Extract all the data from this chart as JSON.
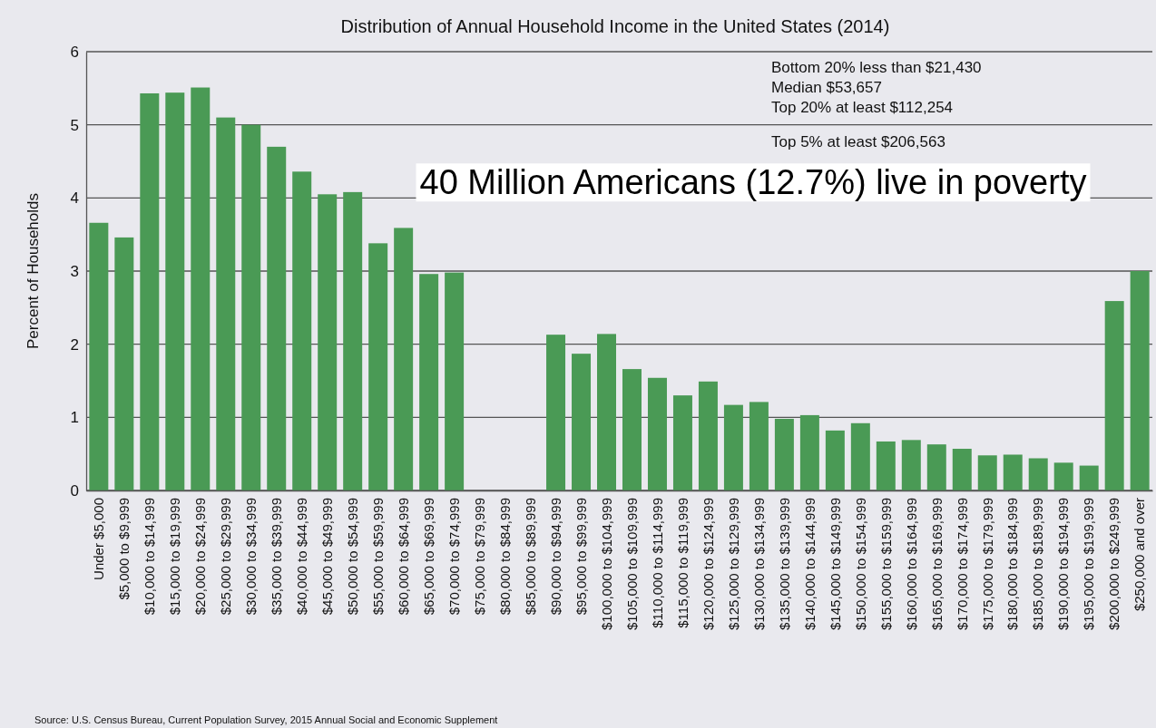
{
  "chart_data": {
    "type": "bar",
    "title": "Distribution of Annual Household Income in the United States (2014)",
    "ylabel": "Percent of Households",
    "categories": [
      "Under $5,000",
      "$5,000 to $9,999",
      "$10,000 to $14,999",
      "$15,000 to $19,999",
      "$20,000 to $24,999",
      "$25,000 to $29,999",
      "$30,000 to $34,999",
      "$35,000 to $39,999",
      "$40,000 to $44,999",
      "$45,000 to $49,999",
      "$50,000 to $54,999",
      "$55,000 to $59,999",
      "$60,000 to $64,999",
      "$65,000 to $69,999",
      "$70,000 to $74,999",
      "$75,000 to $79,999",
      "$80,000 to $84,999",
      "$85,000 to $89,999",
      "$90,000 to $94,999",
      "$95,000 to $99,999",
      "$100,000 to $104,999",
      "$105,000 to $109,999",
      "$110,000 to $114,999",
      "$115,000 to $119,999",
      "$120,000 to $124,999",
      "$125,000 to $129,999",
      "$130,000 to $134,999",
      "$135,000 to $139,999",
      "$140,000 to $144,999",
      "$145,000 to $149,999",
      "$150,000 to $154,999",
      "$155,000 to $159,999",
      "$160,000 to $164,999",
      "$165,000 to $169,999",
      "$170,000 to $174,999",
      "$175,000 to $179,999",
      "$180,000 to $184,999",
      "$185,000 to $189,999",
      "$190,000 to $194,999",
      "$195,000 to $199,999",
      "$200,000 to $249,999",
      "$250,000 and over"
    ],
    "values": [
      3.66,
      3.46,
      5.43,
      5.44,
      5.51,
      5.1,
      5.0,
      4.7,
      4.36,
      4.05,
      4.08,
      3.38,
      3.59,
      2.96,
      2.98,
      null,
      null,
      null,
      2.13,
      1.87,
      2.14,
      1.66,
      1.54,
      1.3,
      1.49,
      1.17,
      1.21,
      0.98,
      1.03,
      0.82,
      0.92,
      0.67,
      0.69,
      0.63,
      0.57,
      0.48,
      0.49,
      0.44,
      0.38,
      0.34,
      2.59,
      3.0
    ],
    "color": "#4a9a55",
    "ylim": [
      0,
      6
    ],
    "yticks": [
      0,
      1,
      2,
      3,
      4,
      5,
      6
    ],
    "grid": "y",
    "annotations": [
      "Bottom 20% less than $21,430",
      "Median $53,657",
      "Top 20% at least $112,254",
      "Top 5% at least $206,563",
      "40 Million Americans (12.7%) live in poverty",
      "Source: U.S. Census Bureau, Current Population Survey, 2015 Annual Social and Economic Supplement"
    ]
  }
}
